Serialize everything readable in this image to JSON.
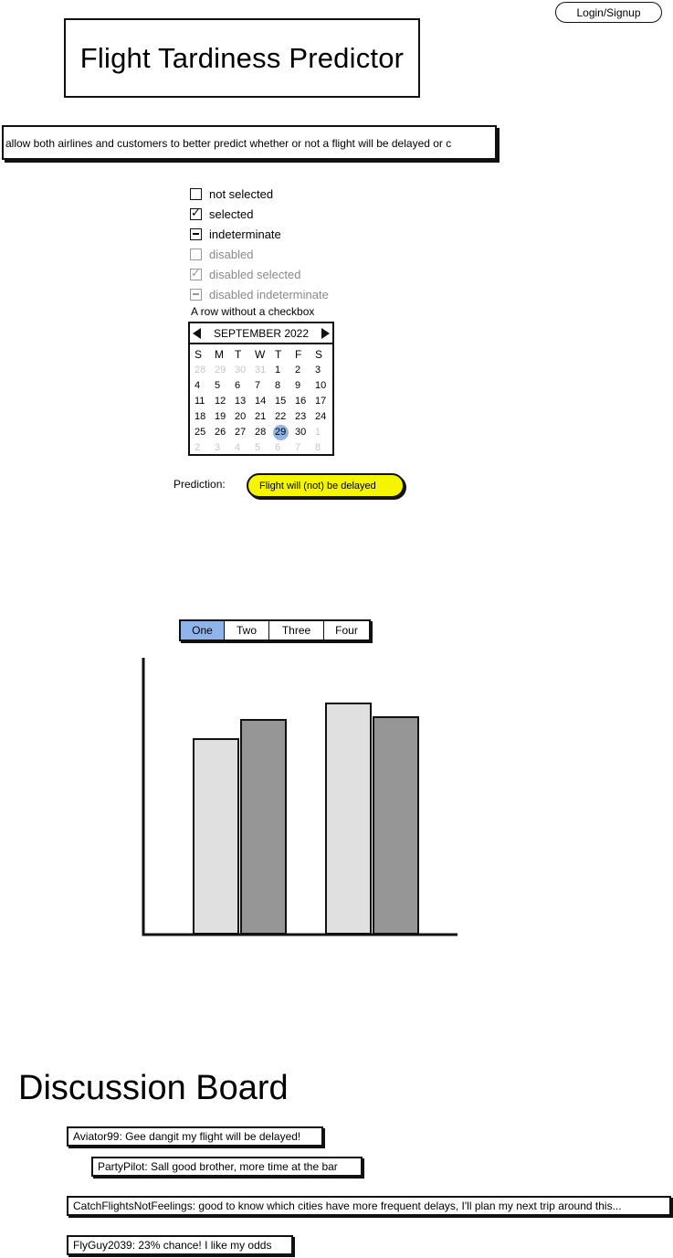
{
  "header": {
    "login_label": "Login/Signup",
    "title": "Flight Tardiness Predictor"
  },
  "description": {
    "value": "allow both airlines and customers to better predict whether or not a flight will be delayed or c"
  },
  "checkboxes": [
    {
      "label": "not selected",
      "state": "unchecked",
      "disabled": false
    },
    {
      "label": "selected",
      "state": "checked",
      "disabled": false
    },
    {
      "label": "indeterminate",
      "state": "indeterminate",
      "disabled": false
    },
    {
      "label": "disabled",
      "state": "unchecked",
      "disabled": true
    },
    {
      "label": "disabled selected",
      "state": "checked",
      "disabled": true
    },
    {
      "label": "disabled indeterminate",
      "state": "indeterminate",
      "disabled": true
    }
  ],
  "plain_row": "A row without a checkbox",
  "calendar": {
    "month_label": "SEPTEMBER 2022",
    "weekdays": [
      "S",
      "M",
      "T",
      "W",
      "T",
      "F",
      "S"
    ],
    "weeks": [
      [
        "28",
        "29",
        "30",
        "31",
        "1",
        "2",
        "3"
      ],
      [
        "4",
        "5",
        "6",
        "7",
        "8",
        "9",
        "10"
      ],
      [
        "11",
        "12",
        "13",
        "14",
        "15",
        "16",
        "17"
      ],
      [
        "18",
        "19",
        "20",
        "21",
        "22",
        "23",
        "24"
      ],
      [
        "25",
        "26",
        "27",
        "28",
        "29",
        "30",
        "1"
      ],
      [
        "2",
        "3",
        "4",
        "5",
        "6",
        "7",
        "8"
      ]
    ],
    "selected_day": "29"
  },
  "prediction": {
    "label": "Prediction:",
    "value": "Flight will (not) be delayed",
    "color": "#f5f500"
  },
  "tabs": {
    "items": [
      "One",
      "Two",
      "Three",
      "Four"
    ],
    "active": "One",
    "active_color": "#8fb4ea"
  },
  "chart_data": {
    "type": "bar",
    "categories": [
      "",
      ""
    ],
    "series": [
      {
        "values": [
          71,
          84
        ],
        "color": "#e0e0e0"
      },
      {
        "values": [
          78,
          79
        ],
        "color": "#969696"
      }
    ],
    "ylim": [
      0,
      100
    ],
    "grid": false
  },
  "discussion": {
    "title": "Discussion Board",
    "posts": [
      {
        "text": "Aviator99: Gee dangit my flight will be delayed!",
        "reply": false
      },
      {
        "text": "PartyPilot: Sall good brother, more time at the bar",
        "reply": true
      },
      {
        "text": "CatchFlightsNotFeelings: good to know which cities have more frequent delays, I'll plan my next trip around this...",
        "reply": false
      },
      {
        "text": "FlyGuy2039: 23% chance! I like my odds",
        "reply": false
      }
    ]
  }
}
